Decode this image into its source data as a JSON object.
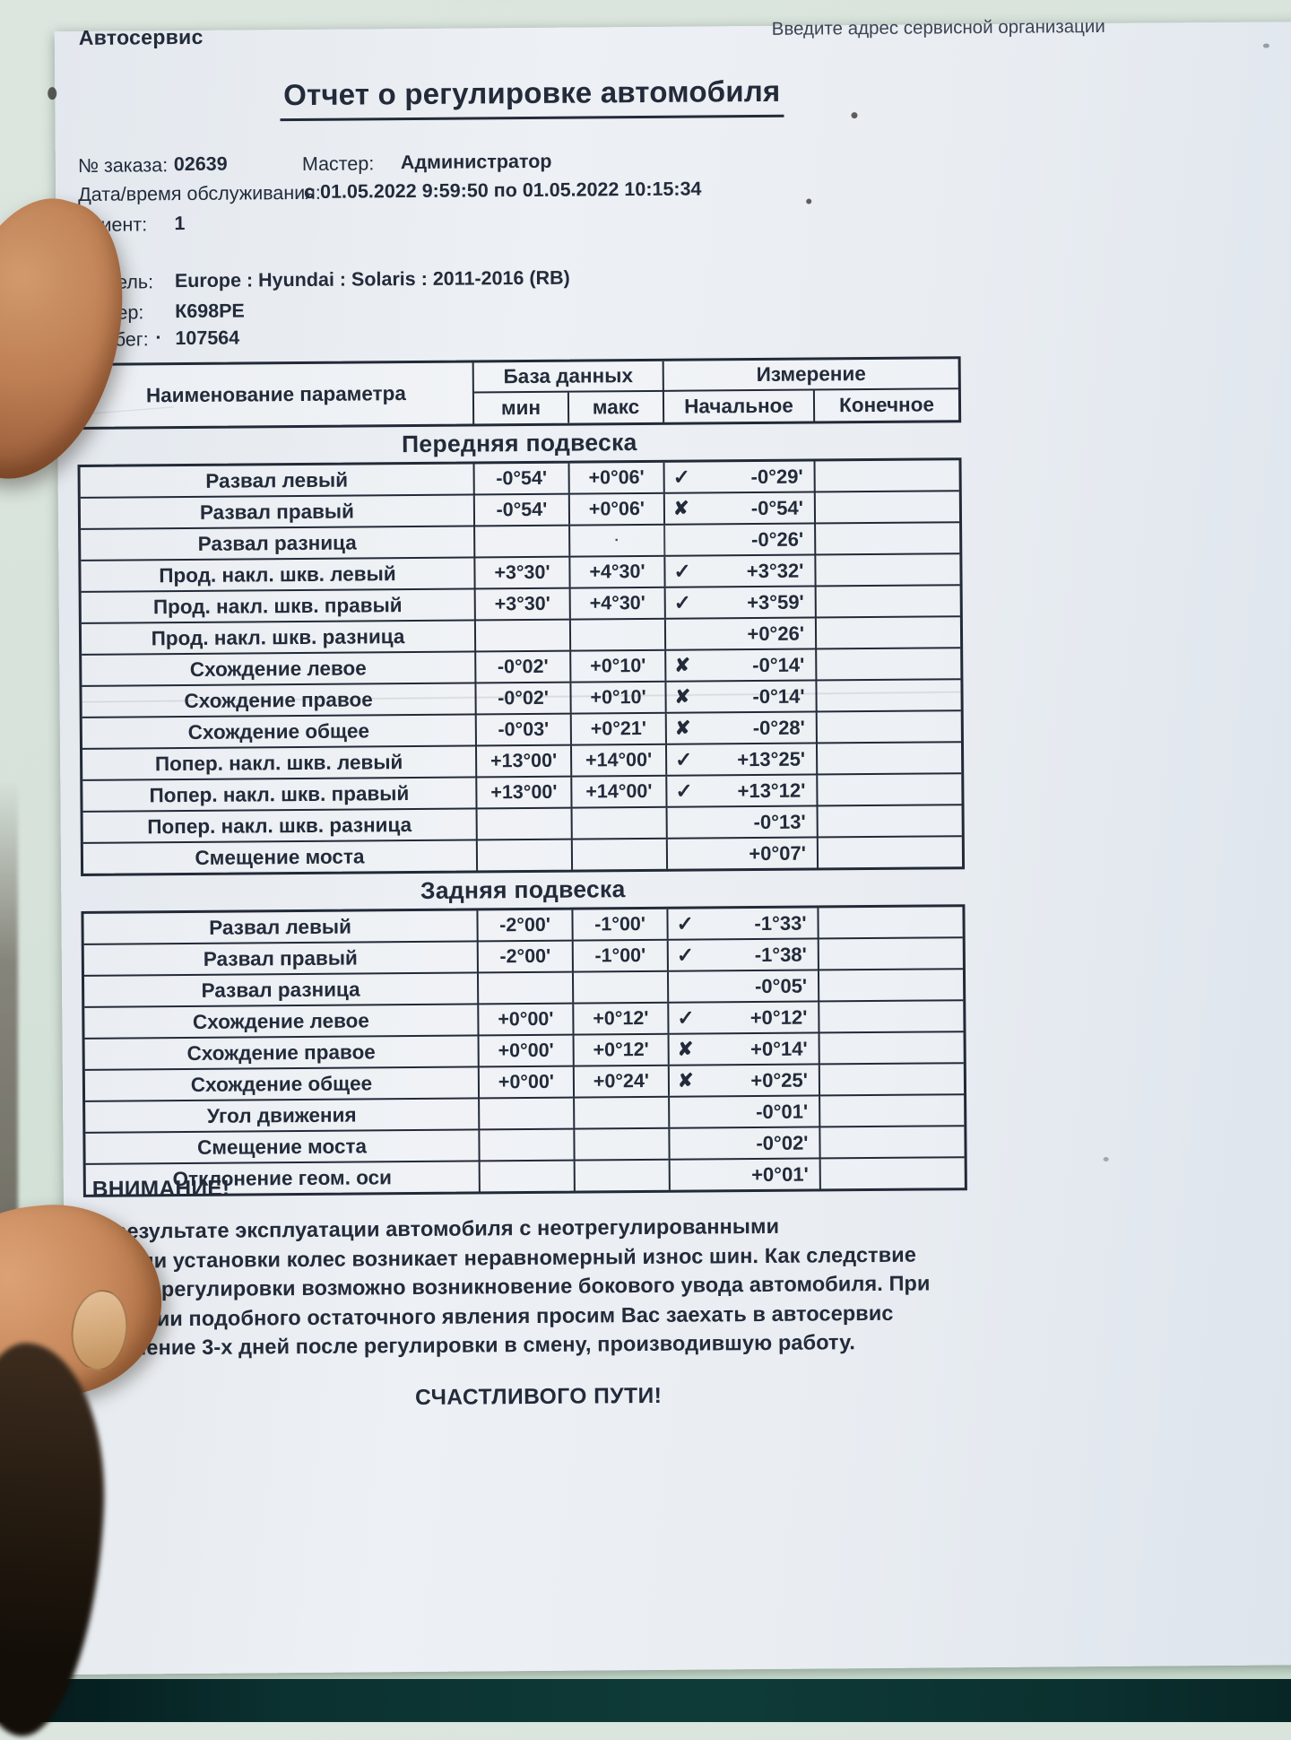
{
  "header": {
    "brand": "Автосервис",
    "address_hint": "Введите адрес сервисной организации",
    "title": "Отчет о регулировке автомобиля"
  },
  "order": {
    "number_label": "№ заказа:",
    "number_value": "02639",
    "master_label": "Мастер:",
    "master_value": "Администратор",
    "datetime_label": "Дата/время обслуживания:",
    "datetime_value": "с 01.05.2022 9:59:50 по 01.05.2022 10:15:34",
    "client_label": "Клиент:",
    "client_value": "1"
  },
  "vehicle": {
    "model_label": "Модель:",
    "model_value": "Europe : Hyundai : Solaris : 2011-2016 (RB)",
    "plate_label": "Номер:",
    "plate_value": "К698РЕ",
    "mileage_label": "Пробег:",
    "mileage_dot": "·",
    "mileage_value": "107564"
  },
  "marks": {
    "check": "✓",
    "cross": "✘"
  },
  "table": {
    "col_param": "Наименование параметра",
    "col_db": "База данных",
    "col_measure": "Измерение",
    "col_min": "мин",
    "col_max": "макс",
    "col_initial": "Начальное",
    "col_final": "Конечное",
    "sections": [
      {
        "title": "Передняя подвеска",
        "rows": [
          {
            "name": "Развал левый",
            "min": "-0°54'",
            "max": "+0°06'",
            "mark": "check",
            "initial": "-0°29'",
            "final": ""
          },
          {
            "name": "Развал правый",
            "min": "-0°54'",
            "max": "+0°06'",
            "mark": "cross",
            "initial": "-0°54'",
            "final": ""
          },
          {
            "name": "Развал разница",
            "min": "",
            "max": "·",
            "mark": "",
            "initial": "-0°26'",
            "final": ""
          },
          {
            "name": "Прод. накл. шкв. левый",
            "min": "+3°30'",
            "max": "+4°30'",
            "mark": "check",
            "initial": "+3°32'",
            "final": ""
          },
          {
            "name": "Прод. накл. шкв. правый",
            "min": "+3°30'",
            "max": "+4°30'",
            "mark": "check",
            "initial": "+3°59'",
            "final": ""
          },
          {
            "name": "Прод. накл. шкв. разница",
            "min": "",
            "max": "",
            "mark": "",
            "initial": "+0°26'",
            "final": ""
          },
          {
            "name": "Схождение левое",
            "min": "-0°02'",
            "max": "+0°10'",
            "mark": "cross",
            "initial": "-0°14'",
            "final": ""
          },
          {
            "name": "Схождение правое",
            "min": "-0°02'",
            "max": "+0°10'",
            "mark": "cross",
            "initial": "-0°14'",
            "final": ""
          },
          {
            "name": "Схождение общее",
            "min": "-0°03'",
            "max": "+0°21'",
            "mark": "cross",
            "initial": "-0°28'",
            "final": ""
          },
          {
            "name": "Попер. накл. шкв. левый",
            "min": "+13°00'",
            "max": "+14°00'",
            "mark": "check",
            "initial": "+13°25'",
            "final": ""
          },
          {
            "name": "Попер. накл. шкв. правый",
            "min": "+13°00'",
            "max": "+14°00'",
            "mark": "check",
            "initial": "+13°12'",
            "final": ""
          },
          {
            "name": "Попер. накл. шкв. разница",
            "min": "",
            "max": "",
            "mark": "",
            "initial": "-0°13'",
            "final": ""
          },
          {
            "name": "Смещение моста",
            "min": "",
            "max": "",
            "mark": "",
            "initial": "+0°07'",
            "final": ""
          }
        ]
      },
      {
        "title": "Задняя подвеска",
        "rows": [
          {
            "name": "Развал левый",
            "min": "-2°00'",
            "max": "-1°00'",
            "mark": "check",
            "initial": "-1°33'",
            "final": ""
          },
          {
            "name": "Развал правый",
            "min": "-2°00'",
            "max": "-1°00'",
            "mark": "check",
            "initial": "-1°38'",
            "final": ""
          },
          {
            "name": "Развал разница",
            "min": "",
            "max": "",
            "mark": "",
            "initial": "-0°05'",
            "final": ""
          },
          {
            "name": "Схождение левое",
            "min": "+0°00'",
            "max": "+0°12'",
            "mark": "check",
            "initial": "+0°12'",
            "final": ""
          },
          {
            "name": "Схождение правое",
            "min": "+0°00'",
            "max": "+0°12'",
            "mark": "cross",
            "initial": "+0°14'",
            "final": ""
          },
          {
            "name": "Схождение общее",
            "min": "+0°00'",
            "max": "+0°24'",
            "mark": "cross",
            "initial": "+0°25'",
            "final": ""
          },
          {
            "name": "Угол движения",
            "min": "",
            "max": "",
            "mark": "",
            "initial": "-0°01'",
            "final": ""
          },
          {
            "name": "Смещение моста",
            "min": "",
            "max": "",
            "mark": "",
            "initial": "-0°02'",
            "final": ""
          },
          {
            "name": "Отклонение геом. оси",
            "min": "",
            "max": "",
            "mark": "",
            "initial": "+0°01'",
            "final": ""
          }
        ]
      }
    ]
  },
  "notice": {
    "heading": "ВНИМАНИЕ!",
    "lines": [
      "В результате эксплуатации автомобиля с неотрегулированными",
      "углами установки колес возникает неравномерный износ шин. Как следствие",
      "после регулировки возможно возникновение бокового увода автомобиля. При",
      "наличии подобного остаточного явления просим Вас заехать в автосервис",
      "в течение 3-х дней после регулировки в смену, производившую работу."
    ],
    "farewell": "СЧАСТЛИВОГО ПУТИ!"
  }
}
